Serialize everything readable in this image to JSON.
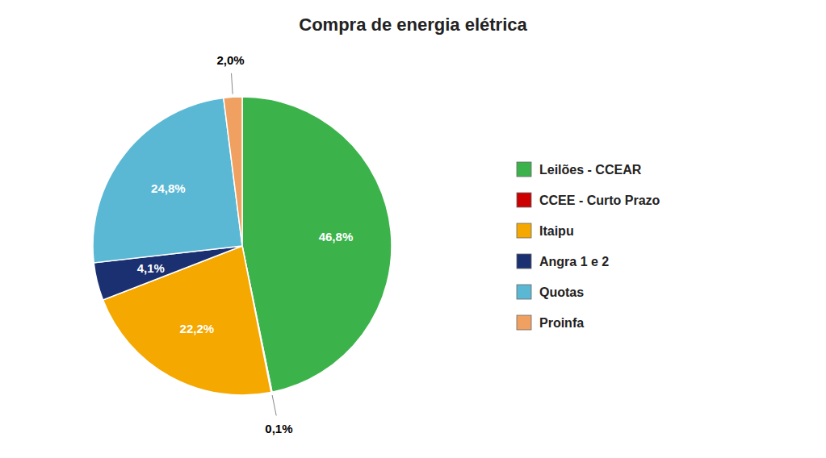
{
  "chart_data": {
    "type": "pie",
    "title": "Compra de energia elétrica",
    "categories": [
      "Leilões - CCEAR",
      "CCEE - Curto Prazo",
      "Itaipu",
      "Angra 1 e 2",
      "Quotas",
      "Proinfa"
    ],
    "values": [
      46.8,
      0.1,
      22.2,
      4.1,
      24.8,
      2.0
    ],
    "value_labels": [
      "46,8%",
      "0,1%",
      "22,2%",
      "4,1%",
      "24,8%",
      "2,0%"
    ],
    "colors": [
      "#3CB34A",
      "#CC0000",
      "#F5A800",
      "#1A3070",
      "#5BB8D4",
      "#F0A060"
    ],
    "data_labels": true,
    "legend": "right"
  }
}
